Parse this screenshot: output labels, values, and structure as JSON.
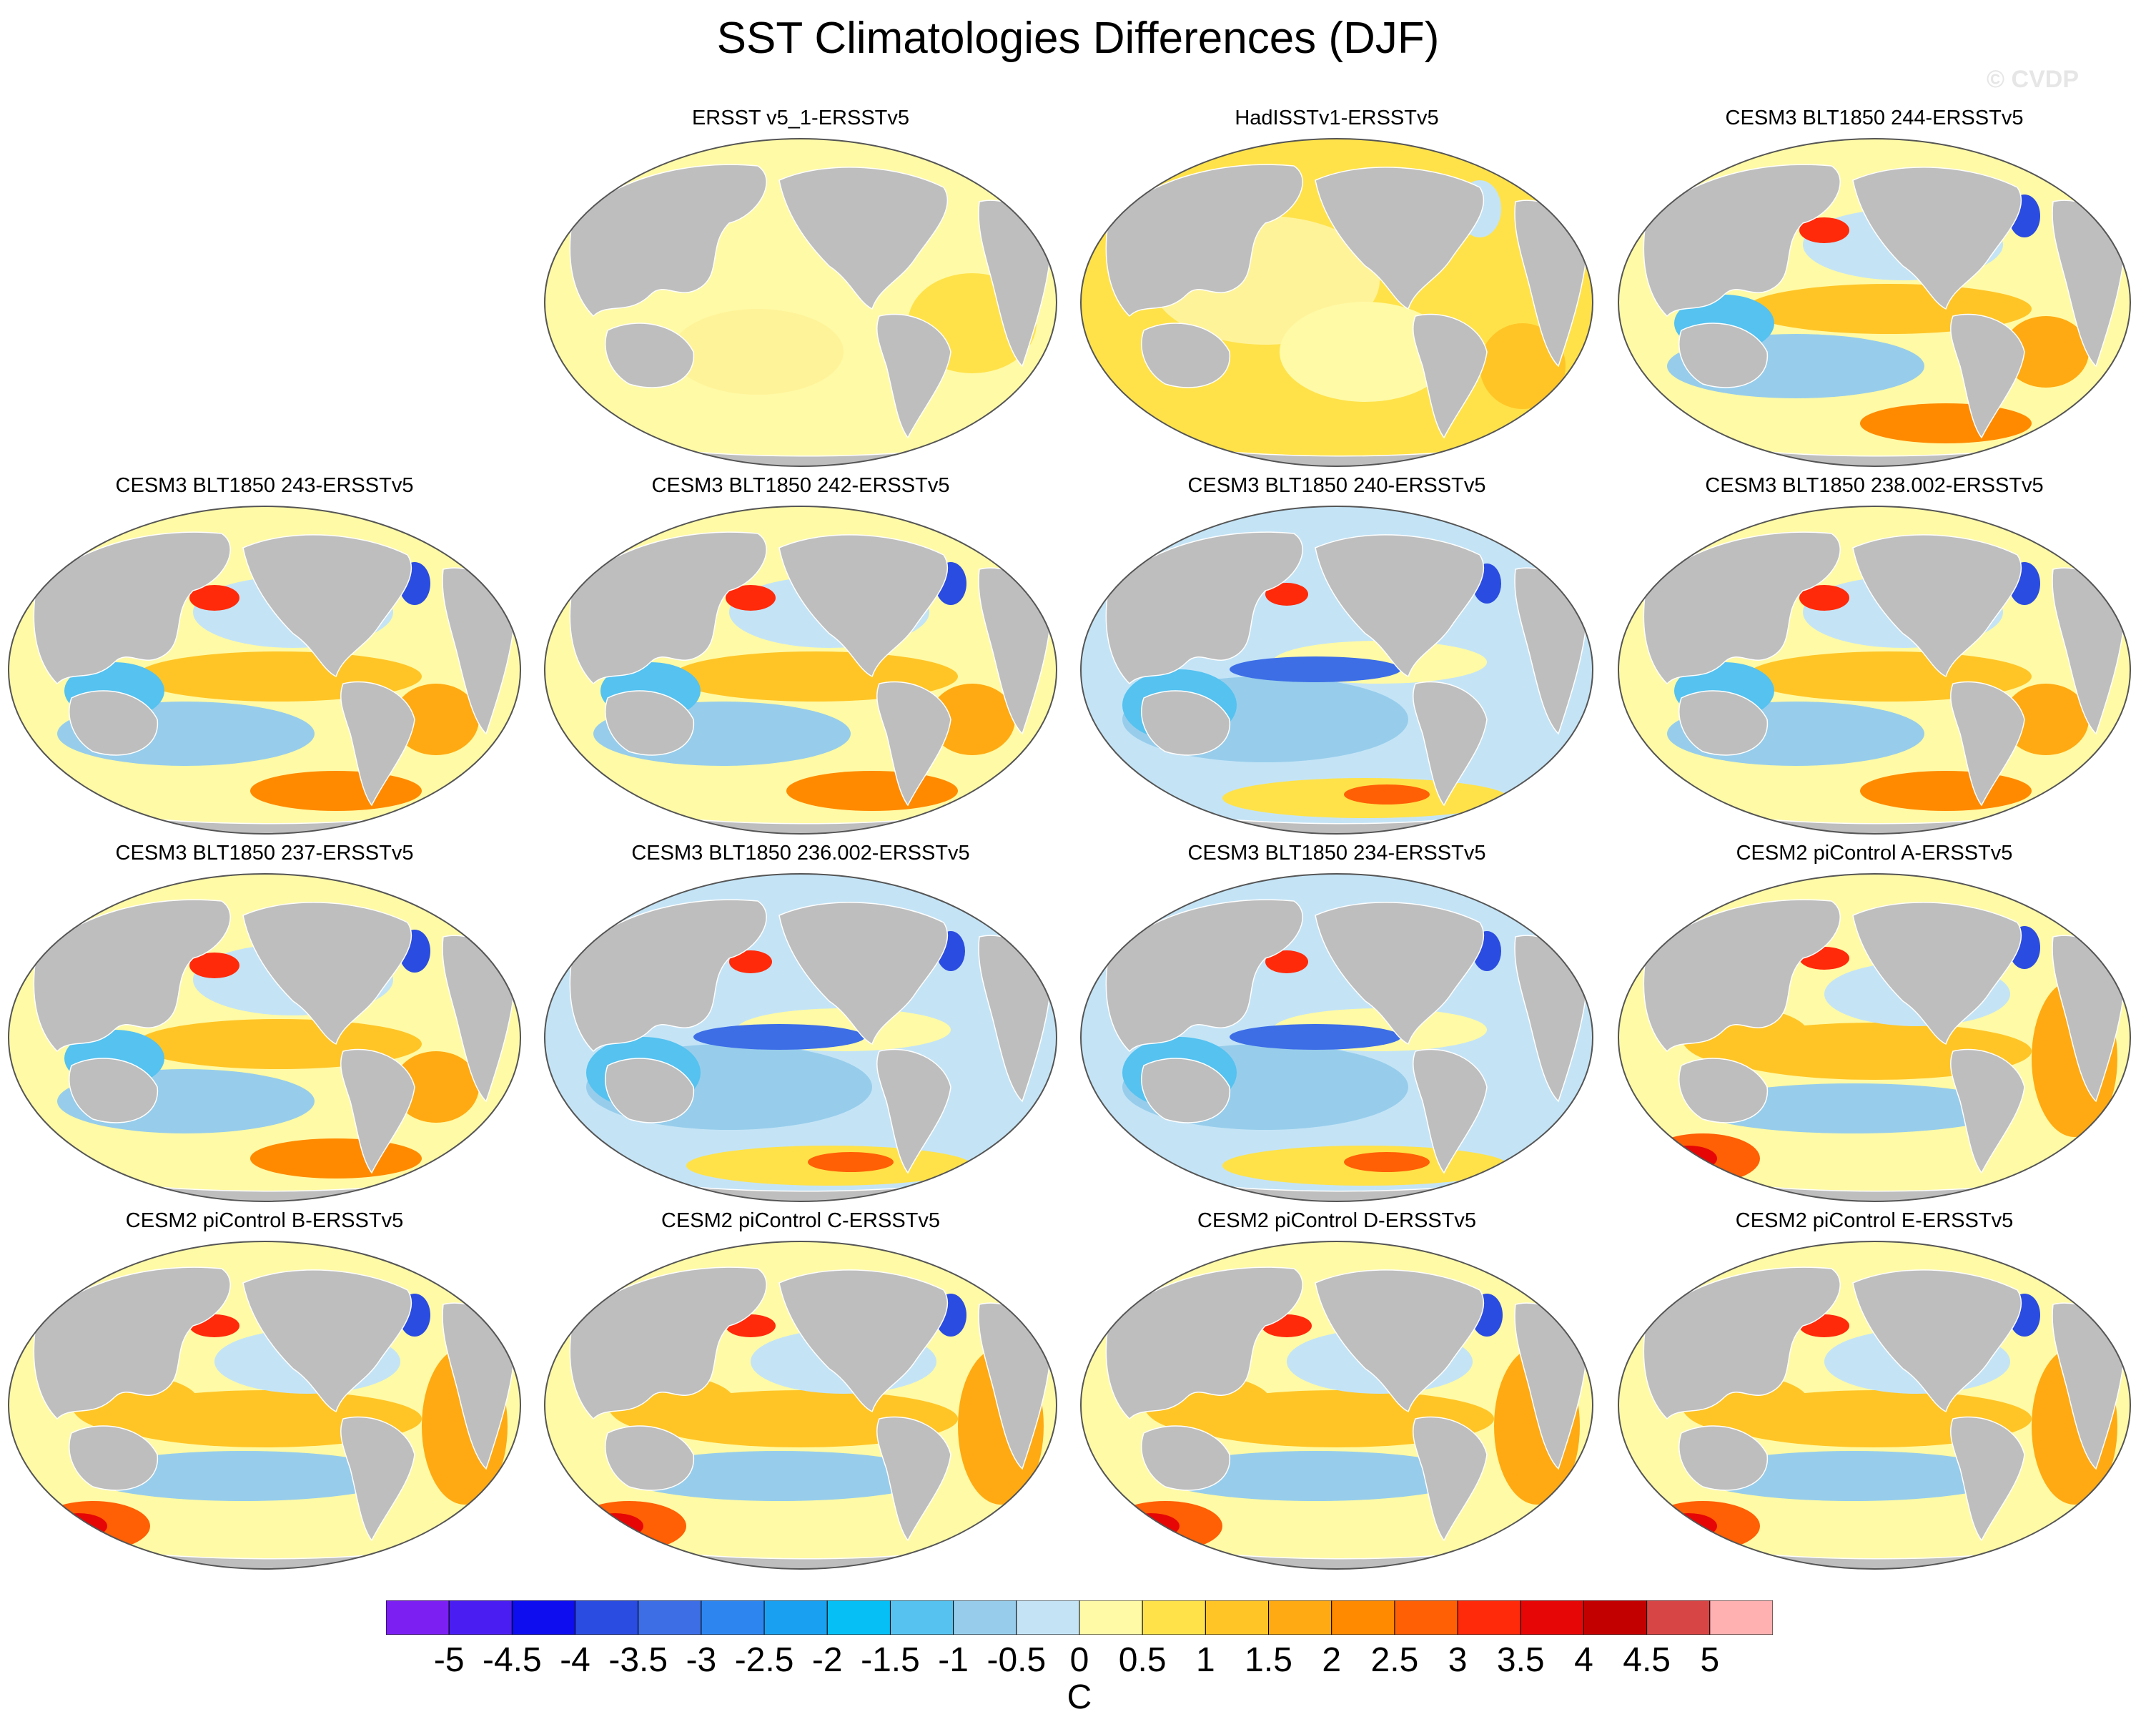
{
  "title": "SST Climatologies Differences (DJF)",
  "watermark": "© CVDP",
  "colors": {
    "land": "#bebebe",
    "outline": "#555555",
    "background": "#ffffff"
  },
  "panels": [
    {
      "title": "ERSST v5_1-ERSSTv5",
      "scheme": "flat"
    },
    {
      "title": "HadISSTv1-ERSSTv5",
      "scheme": "warmflat"
    },
    {
      "title": "CESM3 BLT1850 244-ERSSTv5",
      "scheme": "cesm3"
    },
    {
      "title": "CESM3 BLT1850 243-ERSSTv5",
      "scheme": "cesm3"
    },
    {
      "title": "CESM3 BLT1850 242-ERSSTv5",
      "scheme": "cesm3"
    },
    {
      "title": "CESM3 BLT1850 240-ERSSTv5",
      "scheme": "cesm3cool"
    },
    {
      "title": "CESM3 BLT1850 238.002-ERSSTv5",
      "scheme": "cesm3"
    },
    {
      "title": "CESM3 BLT1850 237-ERSSTv5",
      "scheme": "cesm3"
    },
    {
      "title": "CESM3 BLT1850 236.002-ERSSTv5",
      "scheme": "cesm3cool"
    },
    {
      "title": "CESM3 BLT1850 234-ERSSTv5",
      "scheme": "cesm3cool"
    },
    {
      "title": "CESM2 piControl A-ERSSTv5",
      "scheme": "cesm2"
    },
    {
      "title": "CESM2 piControl B-ERSSTv5",
      "scheme": "cesm2"
    },
    {
      "title": "CESM2 piControl C-ERSSTv5",
      "scheme": "cesm2"
    },
    {
      "title": "CESM2 piControl D-ERSSTv5",
      "scheme": "cesm2"
    },
    {
      "title": "CESM2 piControl E-ERSSTv5",
      "scheme": "cesm2"
    }
  ],
  "colorbar": {
    "colors": [
      "#7b1ff2",
      "#4a1ef2",
      "#0d0df0",
      "#2b4ce0",
      "#3d6ee6",
      "#2d86f0",
      "#1aa0f0",
      "#05bff5",
      "#55c2f0",
      "#97cdeb",
      "#c4e4f6",
      "#fffaa6",
      "#ffe24a",
      "#ffc527",
      "#ffaa12",
      "#ff8a00",
      "#ff5f05",
      "#ff2a0a",
      "#e60606",
      "#c30000",
      "#d84545",
      "#ffb0b0"
    ],
    "ticks": [
      "-5",
      "-4.5",
      "-4",
      "-3.5",
      "-3",
      "-2.5",
      "-2",
      "-1.5",
      "-1",
      "-0.5",
      "0",
      "0.5",
      "1",
      "1.5",
      "2",
      "2.5",
      "3",
      "3.5",
      "4",
      "4.5",
      "5"
    ],
    "units": "C"
  }
}
